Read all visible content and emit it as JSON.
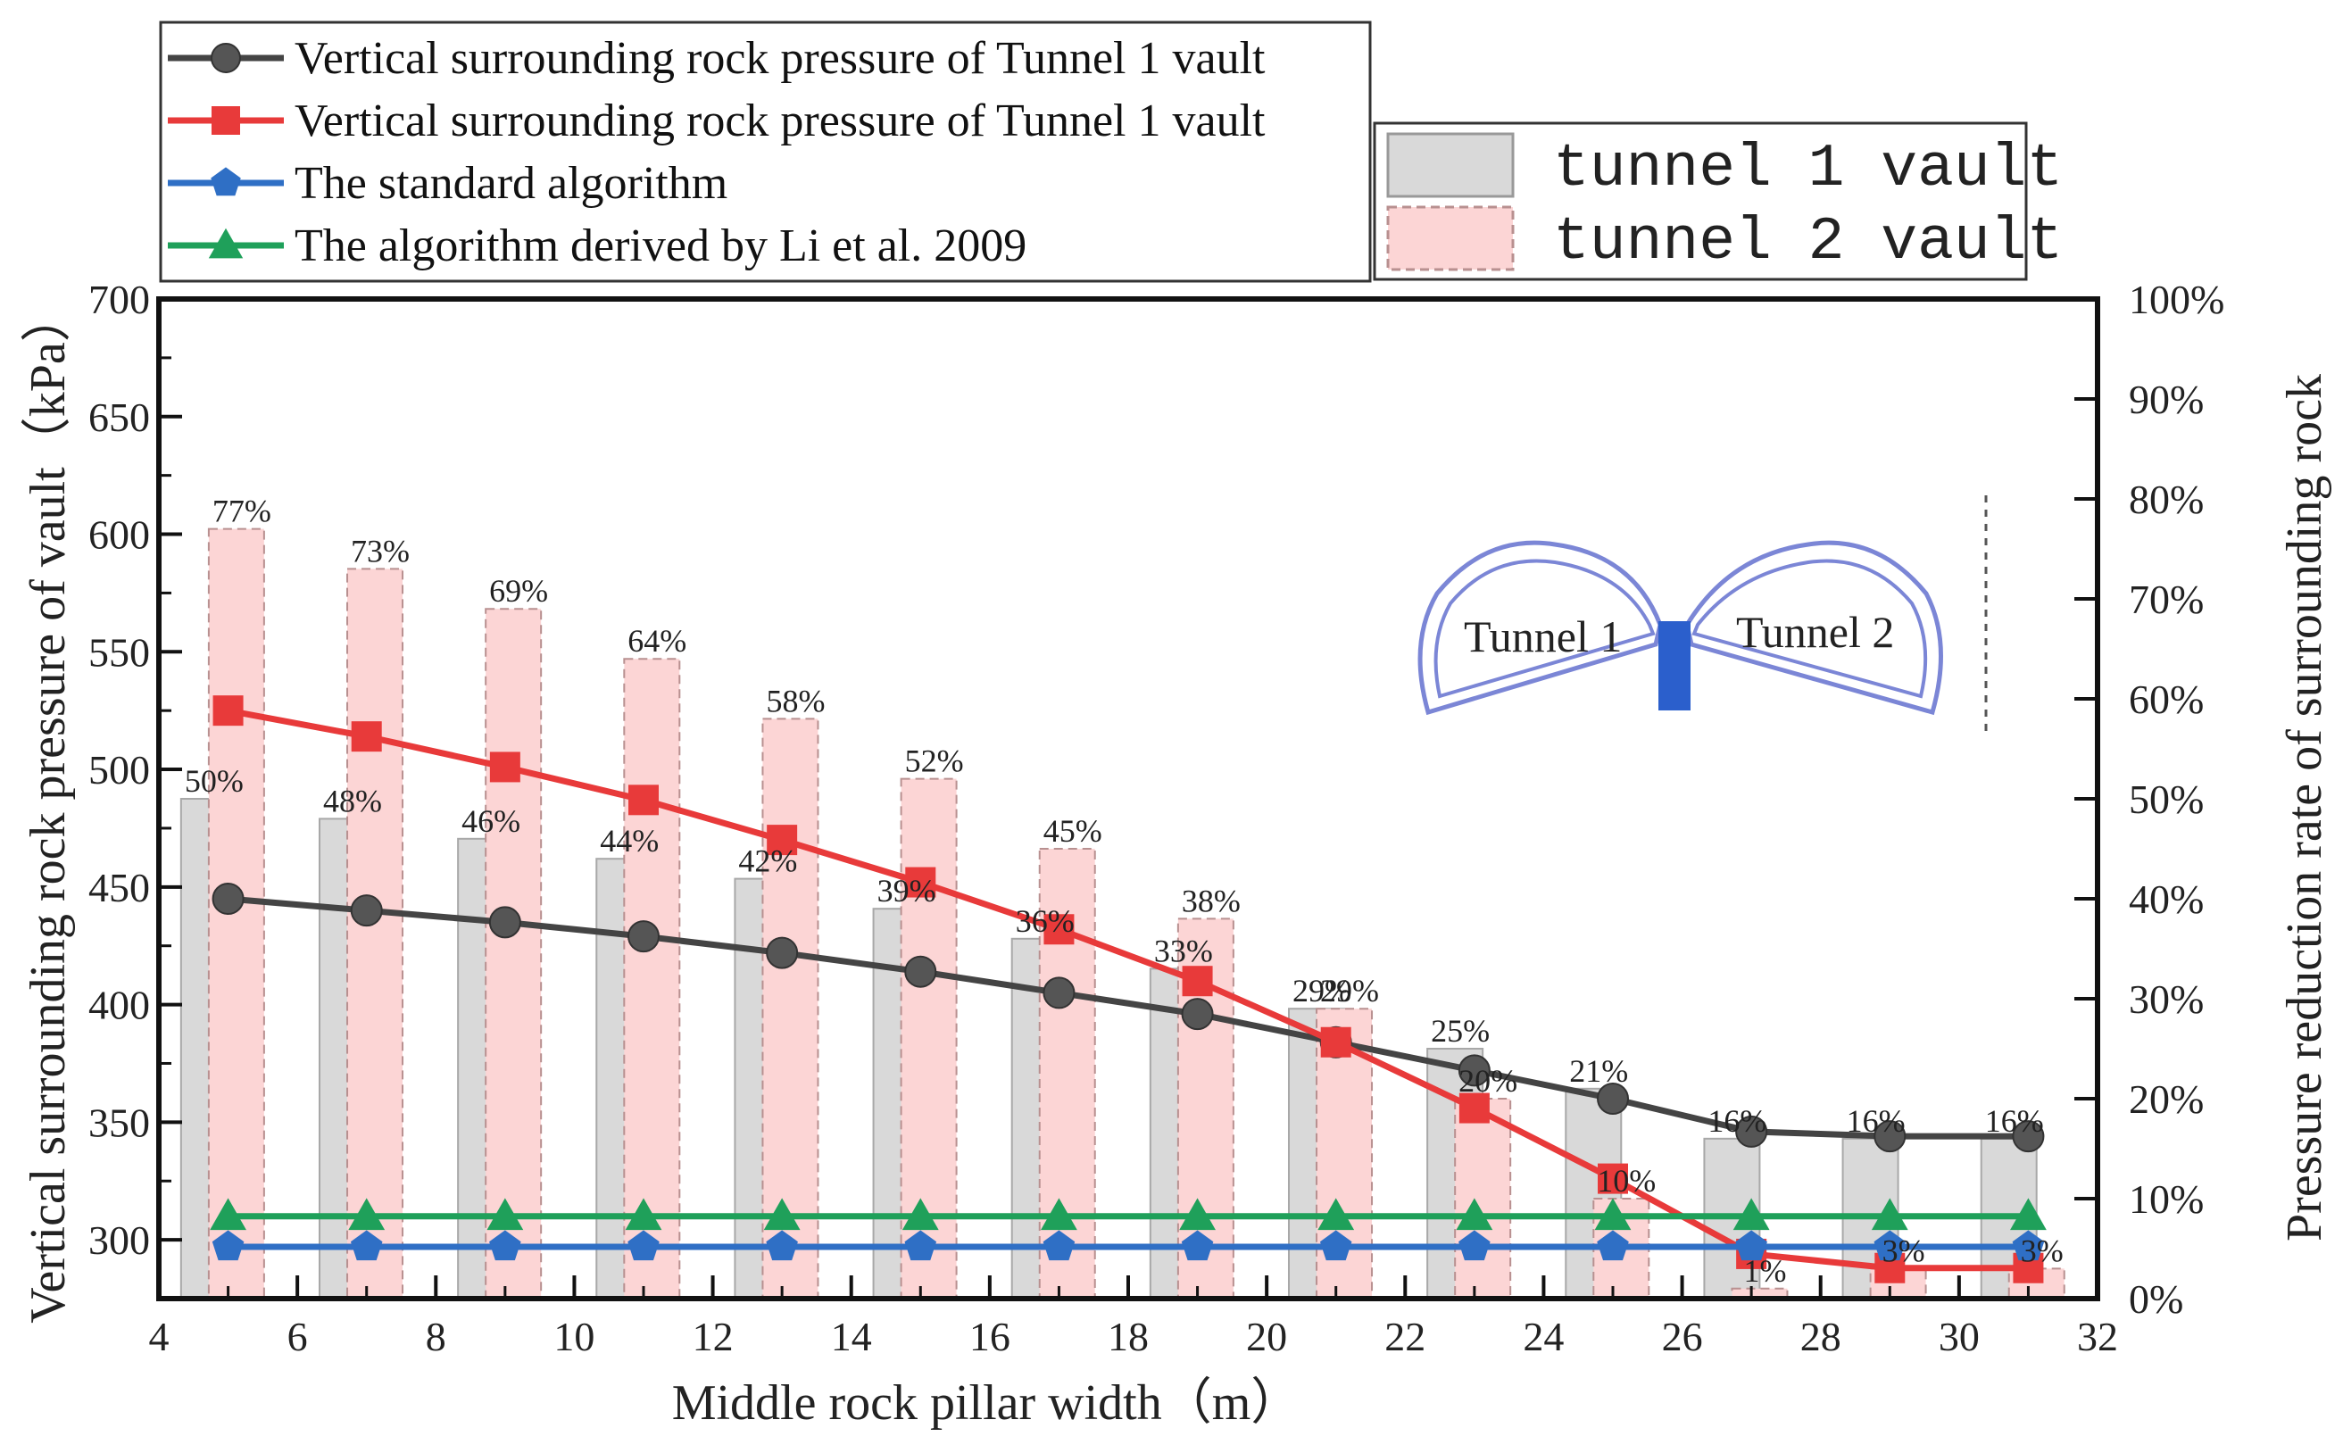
{
  "chart_data": {
    "type": "bar+line",
    "xlabel": "Middle rock pillar width（m）",
    "ylabel": "Vertical surrounding rock pressure of vault（kPa）",
    "y2label": "Pressure reduction rate of surrounding rock",
    "xlim": [
      4,
      32
    ],
    "ylim": [
      275,
      700
    ],
    "y2lim": [
      0,
      100
    ],
    "xticks": [
      "4",
      "6",
      "8",
      "10",
      "12",
      "14",
      "16",
      "18",
      "20",
      "22",
      "24",
      "26",
      "28",
      "30",
      "32"
    ],
    "yticks": [
      "300",
      "350",
      "400",
      "450",
      "500",
      "550",
      "600",
      "650",
      "700"
    ],
    "y2ticks": [
      "0%",
      "10%",
      "20%",
      "30%",
      "40%",
      "50%",
      "60%",
      "70%",
      "80%",
      "90%",
      "100%"
    ],
    "x": [
      5,
      7,
      9,
      11,
      13,
      15,
      17,
      19,
      21,
      23,
      25,
      27,
      29,
      31
    ],
    "bar_series": [
      {
        "name": "tunnel 1 vault",
        "color": "#d9d9d9",
        "values": [
          50,
          48,
          46,
          44,
          42,
          39,
          36,
          33,
          29,
          25,
          21,
          16,
          16,
          16
        ],
        "labels": [
          "50%",
          "48%",
          "46%",
          "44%",
          "42%",
          "39%",
          "36%",
          "33%",
          "29%",
          "25%",
          "21%",
          "16%",
          "16%",
          "16%"
        ]
      },
      {
        "name": "tunnel 2 vault",
        "color": "#fcd5d5",
        "values": [
          77,
          73,
          69,
          64,
          58,
          52,
          45,
          38,
          29,
          20,
          10,
          1,
          3,
          3
        ],
        "labels": [
          "77%",
          "73%",
          "69%",
          "64%",
          "58%",
          "52%",
          "45%",
          "38%",
          "29%",
          "20%",
          "10%",
          "1%",
          "3%",
          "3%"
        ]
      }
    ],
    "line_series": [
      {
        "name": "Vertical surrounding rock pressure of Tunnel 1 vault",
        "color": "#444444",
        "marker": "circle",
        "values": [
          445,
          440,
          435,
          429,
          422,
          414,
          405,
          396,
          384,
          372,
          360,
          346,
          344,
          344
        ]
      },
      {
        "name": "Vertical surrounding rock pressure of Tunnel 1 vault",
        "color": "#e83a3a",
        "marker": "square",
        "values": [
          525,
          514,
          501,
          487,
          470,
          452,
          432,
          410,
          384,
          356,
          326,
          294,
          288,
          288
        ]
      },
      {
        "name": "The standard algorithm",
        "color": "#2f6fc5",
        "marker": "pentagon",
        "values": [
          297,
          297,
          297,
          297,
          297,
          297,
          297,
          297,
          297,
          297,
          297,
          297,
          297,
          297
        ]
      },
      {
        "name": "The algorithm derived by Li et al. 2009",
        "color": "#1fa05a",
        "marker": "triangle",
        "values": [
          310,
          310,
          310,
          310,
          310,
          310,
          310,
          310,
          310,
          310,
          310,
          310,
          310,
          310
        ]
      }
    ],
    "inset": {
      "left_label": "Tunnel 1",
      "right_label": "Tunnel 2"
    }
  }
}
